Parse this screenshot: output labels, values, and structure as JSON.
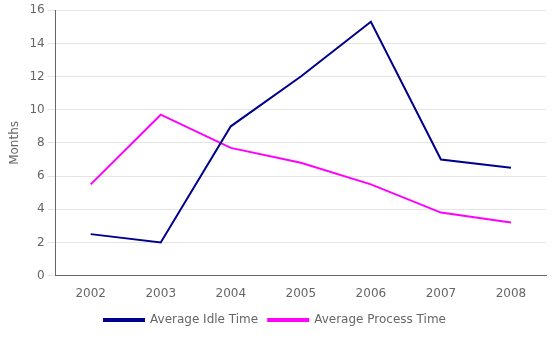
{
  "chart_data": {
    "type": "line",
    "x": [
      2002,
      2003,
      2004,
      2005,
      2006,
      2007,
      2008
    ],
    "series": [
      {
        "name": "Average Idle Time",
        "color": "#00008B",
        "values": [
          2.5,
          2.0,
          9.0,
          12.0,
          15.3,
          7.0,
          6.5
        ]
      },
      {
        "name": "Average Process Time",
        "color": "#FF00FF",
        "values": [
          5.5,
          9.7,
          7.7,
          6.8,
          5.5,
          3.8,
          3.2
        ]
      }
    ],
    "ylabel": "Months",
    "xlim": [
      2001.5,
      2008.5
    ],
    "xticks": [
      2002,
      2003,
      2004,
      2005,
      2006,
      2007,
      2008
    ],
    "ylim": [
      0,
      16
    ],
    "yticks": [
      0,
      2,
      4,
      6,
      8,
      10,
      12,
      14,
      16
    ],
    "grid": true,
    "legend": "bottom"
  }
}
